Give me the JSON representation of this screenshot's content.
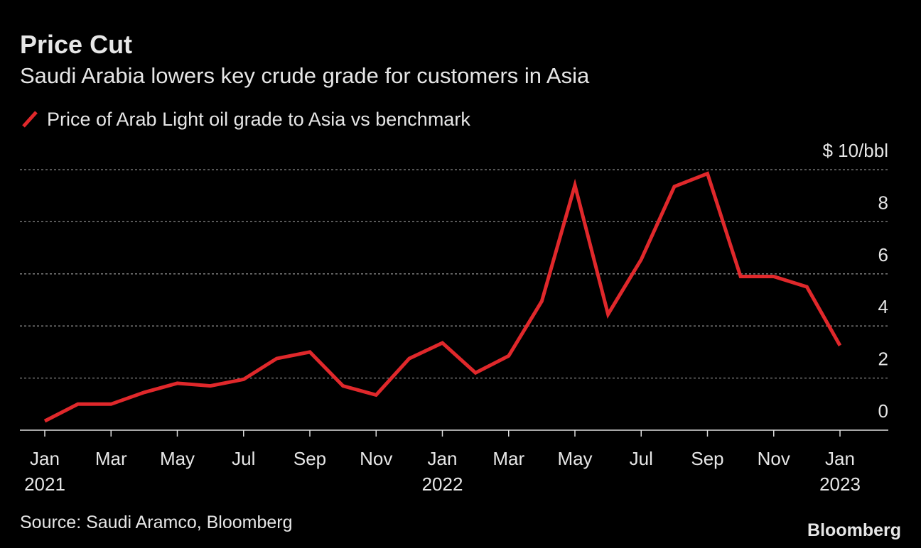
{
  "chart_data": {
    "type": "line",
    "title": "Price Cut",
    "subtitle": "Saudi Arabia lowers key crude grade for customers in Asia",
    "categories": [
      "Jan",
      null,
      "Mar",
      null,
      "May",
      null,
      "Jul",
      null,
      "Sep",
      null,
      "Nov",
      null,
      "Jan",
      null,
      "Mar",
      null,
      "May",
      null,
      "Jul",
      null,
      "Sep",
      null,
      "Nov",
      null,
      "Jan"
    ],
    "category_years": [
      "2021",
      null,
      null,
      null,
      null,
      null,
      null,
      null,
      null,
      null,
      null,
      null,
      "2022",
      null,
      null,
      null,
      null,
      null,
      null,
      null,
      null,
      null,
      null,
      null,
      "2023"
    ],
    "series": [
      {
        "name": "Price of Arab Light oil grade to Asia vs benchmark",
        "color": "#e0282b",
        "values": [
          0.35,
          1.0,
          1.0,
          1.45,
          1.8,
          1.7,
          1.95,
          2.75,
          3.0,
          1.7,
          1.35,
          2.75,
          3.35,
          2.2,
          2.85,
          4.95,
          9.4,
          4.45,
          6.55,
          9.35,
          9.85,
          5.9,
          5.9,
          5.5,
          3.25
        ]
      }
    ],
    "ylim": [
      0,
      10
    ],
    "yticks": [
      0,
      2,
      4,
      6,
      8,
      {
        "value": 10,
        "label": "$ 10/bbl"
      }
    ],
    "grid": true,
    "source": "Source: Saudi Aramco, Bloomberg",
    "brand": "Bloomberg"
  }
}
